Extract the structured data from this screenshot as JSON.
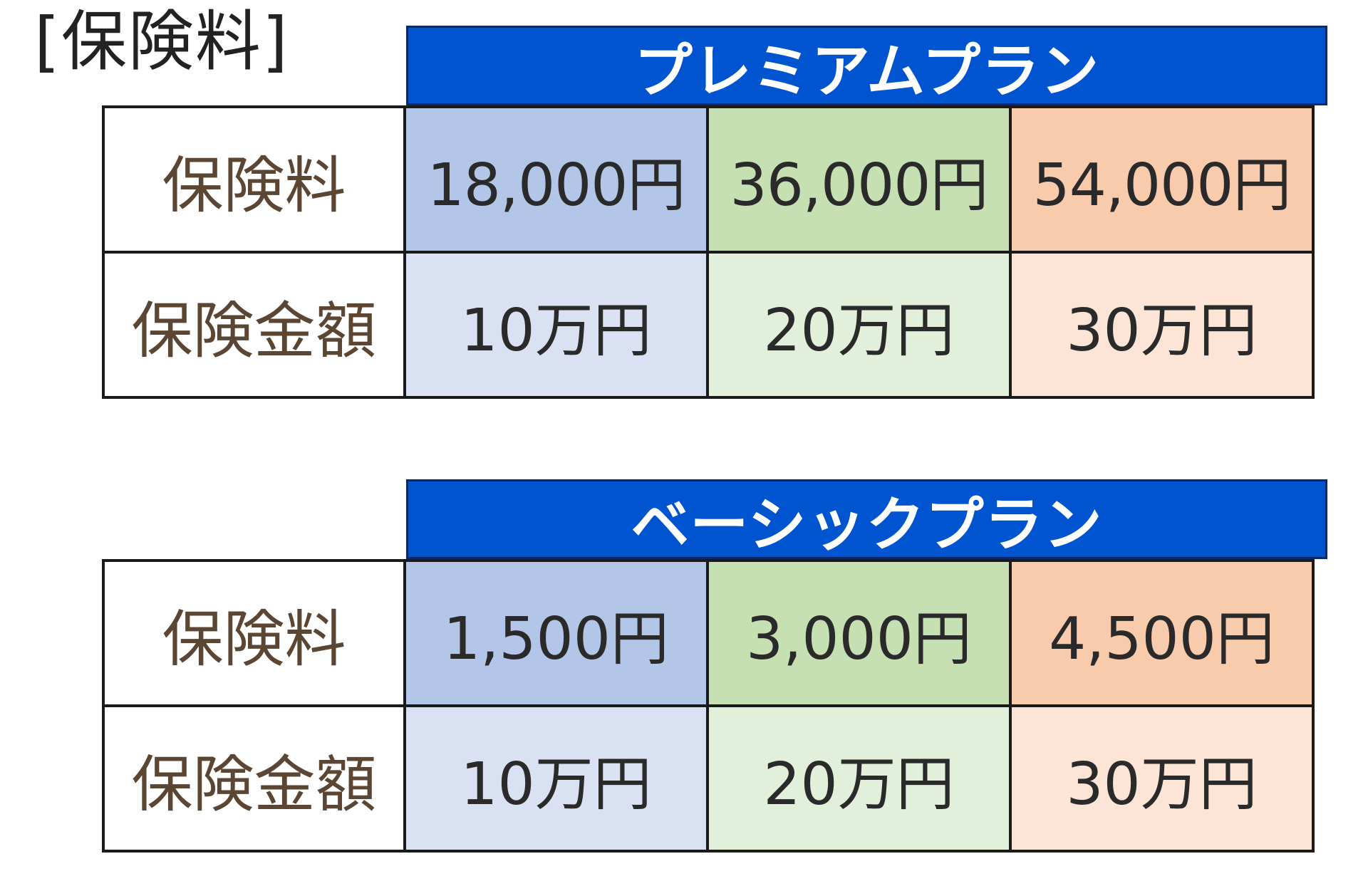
{
  "title": "[保険料]",
  "plans": [
    {
      "name": "プレミアムプラン",
      "rows": [
        {
          "label": "保険料",
          "values": [
            "18,000円",
            "36,000円",
            "54,000円"
          ]
        },
        {
          "label": "保険金額",
          "values": [
            "10万円",
            "20万円",
            "30万円"
          ]
        }
      ]
    },
    {
      "name": "ベーシックプラン",
      "rows": [
        {
          "label": "保険料",
          "values": [
            "1,500円",
            "3,000円",
            "4,500円"
          ]
        },
        {
          "label": "保険金額",
          "values": [
            "10万円",
            "20万円",
            "30万円"
          ]
        }
      ]
    }
  ],
  "colors": {
    "header_bg": "#0154cf",
    "header_text": "#ffffff",
    "col1_premium": "#b4c6e7",
    "col2_premium": "#c6e0b4",
    "col3_premium": "#f8cbad",
    "col1_amount": "#dae1f3",
    "col2_amount": "#e2efda",
    "col3_amount": "#fce4d6"
  }
}
